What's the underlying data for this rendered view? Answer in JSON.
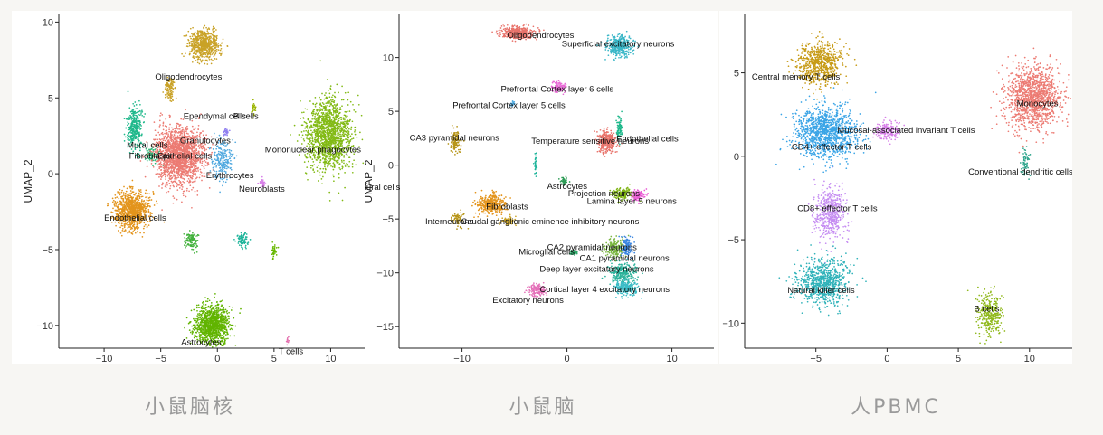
{
  "captions": [
    "小鼠脑核",
    "小鼠脑",
    "人PBMC"
  ],
  "header_fragment": "",
  "chart_data": [
    {
      "type": "scatter",
      "title": "",
      "xlabel": "",
      "ylabel": "UMAP_2",
      "xlim": [
        -14,
        13
      ],
      "ylim": [
        -11.5,
        10.5
      ],
      "xticks": [
        -10,
        -5,
        0,
        5,
        10
      ],
      "yticks": [
        10,
        5,
        0,
        -5,
        -10
      ],
      "grid": false,
      "clusters": [
        {
          "name": "Oligodendrocytes",
          "x": -1.2,
          "y": 8.5,
          "sx": 1.2,
          "sy": 0.9,
          "n": 650,
          "color": "#c9a227",
          "lx": -5.5,
          "ly": 6.2
        },
        {
          "name": "Ependymal cells",
          "x": -4.2,
          "y": 5.6,
          "sx": 0.4,
          "sy": 0.7,
          "n": 120,
          "color": "#c9a227",
          "lx": -3.0,
          "ly": 3.6
        },
        {
          "name": "B cells",
          "x": 3.2,
          "y": 4.3,
          "sx": 0.15,
          "sy": 0.4,
          "n": 25,
          "color": "#9ab400",
          "lx": 1.4,
          "ly": 3.6
        },
        {
          "name": "Granulocytes",
          "x": 0.7,
          "y": 2.8,
          "sx": 0.3,
          "sy": 0.3,
          "n": 25,
          "color": "#8f7ff0",
          "lx": -3.3,
          "ly": 2.0
        },
        {
          "name": "Mural cells",
          "x": -7.3,
          "y": 3.0,
          "sx": 0.6,
          "sy": 1.3,
          "n": 320,
          "color": "#1fb88b",
          "lx": -8.0,
          "ly": 1.7
        },
        {
          "name": "Fibroblasts",
          "x": -5.8,
          "y": 1.2,
          "sx": 0.5,
          "sy": 0.5,
          "n": 80,
          "color": "#2bb97a",
          "lx": -7.8,
          "ly": 1.0
        },
        {
          "name": "Epithelial cells",
          "x": -3.3,
          "y": 1.2,
          "sx": 1.9,
          "sy": 1.7,
          "n": 1800,
          "color": "#ec7b73",
          "lx": -5.3,
          "ly": 1.0
        },
        {
          "name": "Mononuclear phagocytes",
          "x": 9.8,
          "y": 2.5,
          "sx": 1.8,
          "sy": 2.1,
          "n": 1500,
          "color": "#82ba15",
          "lx": 4.2,
          "ly": 1.4
        },
        {
          "name": "Erythrocytes",
          "x": 0.4,
          "y": 0.9,
          "sx": 0.9,
          "sy": 1.1,
          "n": 220,
          "color": "#4fa8df",
          "lx": -1.0,
          "ly": -0.3
        },
        {
          "name": "Neuroblasts",
          "x": 4.0,
          "y": -0.6,
          "sx": 0.3,
          "sy": 0.3,
          "n": 30,
          "color": "#d77fe8",
          "lx": 1.9,
          "ly": -1.2
        },
        {
          "name": "Endothelial cells",
          "x": -7.5,
          "y": -2.4,
          "sx": 1.4,
          "sy": 1.1,
          "n": 950,
          "color": "#e3941c",
          "lx": -10.0,
          "ly": -3.1
        },
        {
          "name": "",
          "x": -2.3,
          "y": -4.4,
          "sx": 0.5,
          "sy": 0.5,
          "n": 120,
          "color": "#41b13b",
          "lx": 0,
          "ly": 0
        },
        {
          "name": "",
          "x": 2.2,
          "y": -4.4,
          "sx": 0.4,
          "sy": 0.5,
          "n": 90,
          "color": "#1fb59b",
          "lx": 0,
          "ly": 0
        },
        {
          "name": "",
          "x": 5.0,
          "y": -5.2,
          "sx": 0.2,
          "sy": 0.5,
          "n": 35,
          "color": "#68b800",
          "lx": 0,
          "ly": 0
        },
        {
          "name": "Astrocytes",
          "x": -0.5,
          "y": -10.0,
          "sx": 1.4,
          "sy": 1.2,
          "n": 1100,
          "color": "#61b400",
          "lx": -3.2,
          "ly": -11.3
        },
        {
          "name": "T cells",
          "x": 6.2,
          "y": -11.1,
          "sx": 0.1,
          "sy": 0.25,
          "n": 12,
          "color": "#e36fae",
          "lx": 5.4,
          "ly": -11.9
        }
      ]
    },
    {
      "type": "scatter",
      "title": "",
      "xlabel": "",
      "ylabel": "UMAP_2",
      "xlim": [
        -16,
        14
      ],
      "ylim": [
        -17,
        14
      ],
      "xticks": [
        -10,
        0,
        10
      ],
      "yticks": [
        10,
        5,
        0,
        -5,
        -10,
        -15
      ],
      "grid": false,
      "clusters": [
        {
          "name": "Oligodendrocytes",
          "x": -4.7,
          "y": 12.3,
          "sx": 1.4,
          "sy": 0.5,
          "n": 420,
          "color": "#e8736b",
          "lx": -5.7,
          "ly": 11.8
        },
        {
          "name": "Superficial excitatory neurons",
          "x": 5.0,
          "y": 11.1,
          "sx": 1.2,
          "sy": 0.9,
          "n": 380,
          "color": "#39b6c7",
          "lx": -0.5,
          "ly": 11.0
        },
        {
          "name": "Prefrontal Cortex layer 6 cells",
          "x": -0.8,
          "y": 7.2,
          "sx": 0.7,
          "sy": 0.4,
          "n": 120,
          "color": "#e86ad6",
          "lx": -6.3,
          "ly": 6.8
        },
        {
          "name": "Prefrontal Cortex layer 5 cells",
          "x": -5.2,
          "y": 5.7,
          "sx": 0.2,
          "sy": 0.2,
          "n": 20,
          "color": "#4aa8e0",
          "lx": -10.9,
          "ly": 5.3
        },
        {
          "name": "CA3 pyramidal neurons",
          "x": -10.6,
          "y": 2.3,
          "sx": 0.4,
          "sy": 1.0,
          "n": 120,
          "color": "#b69417",
          "lx": -15.0,
          "ly": 2.3
        },
        {
          "name": "Temperature sensitive neurons",
          "x": 3.8,
          "y": 2.2,
          "sx": 0.8,
          "sy": 0.9,
          "n": 320,
          "color": "#e8736b",
          "lx": -3.4,
          "ly": 2.0
        },
        {
          "name": "Endothelial cells",
          "x": 5.0,
          "y": 3.5,
          "sx": 0.3,
          "sy": 1.0,
          "n": 80,
          "color": "#1fb88b",
          "lx": 4.7,
          "ly": 2.2
        },
        {
          "name": "",
          "x": -3.0,
          "y": 0.2,
          "sx": 0.1,
          "sy": 1.2,
          "n": 30,
          "color": "#1fb59b",
          "lx": 0,
          "ly": 0
        },
        {
          "name": "Astrocytes",
          "x": -0.3,
          "y": -1.5,
          "sx": 0.3,
          "sy": 0.4,
          "n": 40,
          "color": "#2c9b55",
          "lx": -1.9,
          "ly": -2.2
        },
        {
          "name": "Projection neurons",
          "x": 5.2,
          "y": -2.7,
          "sx": 0.9,
          "sy": 0.5,
          "n": 160,
          "color": "#7fb414",
          "lx": 0.1,
          "ly": -2.9
        },
        {
          "name": "Lamina layer 5 neurons",
          "x": 6.8,
          "y": -2.8,
          "sx": 0.6,
          "sy": 0.5,
          "n": 120,
          "color": "#e85ad3",
          "lx": 1.9,
          "ly": -3.6
        },
        {
          "name": "Fibroblasts",
          "x": -7.2,
          "y": -3.6,
          "sx": 1.2,
          "sy": 0.8,
          "n": 400,
          "color": "#e3941c",
          "lx": -7.7,
          "ly": -4.1
        },
        {
          "name": "Interneurons",
          "x": -10.4,
          "y": -5.0,
          "sx": 0.5,
          "sy": 0.6,
          "n": 60,
          "color": "#b69417",
          "lx": -13.5,
          "ly": -5.5
        },
        {
          "name": "Caudal ganglionic eminence inhibitory neurons",
          "x": -5.6,
          "y": -5.2,
          "sx": 0.7,
          "sy": 0.4,
          "n": 60,
          "color": "#c9a227",
          "lx": -10.1,
          "ly": -5.5
        },
        {
          "name": "CA2 pyramidal neurons",
          "x": 4.6,
          "y": -7.7,
          "sx": 0.9,
          "sy": 0.8,
          "n": 180,
          "color": "#7ab640",
          "lx": -1.9,
          "ly": -7.9
        },
        {
          "name": "Microglial cells",
          "x": 0.6,
          "y": -8.1,
          "sx": 0.3,
          "sy": 0.3,
          "n": 40,
          "color": "#2da869",
          "lx": -4.6,
          "ly": -8.3
        },
        {
          "name": "CA1 pyramidal neurons",
          "x": 5.7,
          "y": -7.6,
          "sx": 0.5,
          "sy": 0.8,
          "n": 120,
          "color": "#3b86e0",
          "lx": 1.2,
          "ly": -8.9
        },
        {
          "name": "Deep layer excitatory neurons",
          "x": 5.3,
          "y": -10.0,
          "sx": 1.1,
          "sy": 0.8,
          "n": 280,
          "color": "#2cb39b",
          "lx": -2.6,
          "ly": -9.9
        },
        {
          "name": "Cortical layer 4 excitatory neurons",
          "x": 5.6,
          "y": -11.4,
          "sx": 1.0,
          "sy": 0.6,
          "n": 240,
          "color": "#3bbcc6",
          "lx": -2.6,
          "ly": -11.8
        },
        {
          "name": "Excitatory neurons",
          "x": -2.8,
          "y": -11.6,
          "sx": 0.8,
          "sy": 0.5,
          "n": 140,
          "color": "#e46fb8",
          "lx": -7.1,
          "ly": -12.8
        }
      ],
      "partial_label": {
        "name": "Mural cells"
      }
    },
    {
      "type": "scatter",
      "title": "",
      "xlabel": "",
      "ylabel": "",
      "xlim": [
        -10,
        13
      ],
      "ylim": [
        -11.5,
        8.5
      ],
      "xticks": [
        -5,
        0,
        5,
        10
      ],
      "yticks": [
        5,
        0,
        -5,
        -10
      ],
      "grid": false,
      "clusters": [
        {
          "name": "Central memory T cells",
          "x": -4.8,
          "y": 5.5,
          "sx": 1.4,
          "sy": 1.2,
          "n": 700,
          "color": "#c79b17",
          "lx": -9.5,
          "ly": 4.6
        },
        {
          "name": "Monocytes",
          "x": 10.3,
          "y": 3.5,
          "sx": 1.7,
          "sy": 1.7,
          "n": 1300,
          "color": "#ec7b73",
          "lx": 9.1,
          "ly": 3.0
        },
        {
          "name": "Mucosal-associated invariant T cells",
          "x": 0.0,
          "y": 1.5,
          "sx": 0.8,
          "sy": 0.5,
          "n": 180,
          "color": "#d77fe8",
          "lx": -3.5,
          "ly": 1.4
        },
        {
          "name": "CD4+ effector T cells",
          "x": -4.3,
          "y": 1.4,
          "sx": 1.9,
          "sy": 1.4,
          "n": 1200,
          "color": "#3aa4e6",
          "lx": -6.7,
          "ly": 0.4
        },
        {
          "name": "Conventional dendritic cells",
          "x": 9.7,
          "y": -0.3,
          "sx": 0.3,
          "sy": 0.9,
          "n": 60,
          "color": "#2ca48b",
          "lx": 5.7,
          "ly": -1.1
        },
        {
          "name": "CD8+ effector T cells",
          "x": -4.0,
          "y": -3.5,
          "sx": 1.0,
          "sy": 1.5,
          "n": 480,
          "color": "#c58cf2",
          "lx": -6.3,
          "ly": -3.3
        },
        {
          "name": "Natural killer cells",
          "x": -4.5,
          "y": -7.5,
          "sx": 1.6,
          "sy": 1.3,
          "n": 800,
          "color": "#2fb2b9",
          "lx": -7.0,
          "ly": -8.2
        },
        {
          "name": "B cells",
          "x": 7.2,
          "y": -9.5,
          "sx": 0.8,
          "sy": 1.2,
          "n": 340,
          "color": "#8fb81a",
          "lx": 6.1,
          "ly": -9.3
        }
      ]
    }
  ]
}
